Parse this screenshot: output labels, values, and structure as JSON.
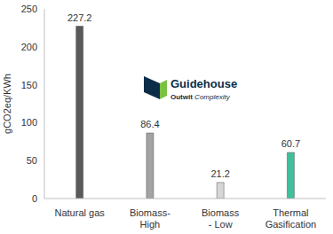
{
  "chart_data": {
    "type": "bar",
    "categories": [
      "Natural gas",
      "Biomass-\nHigh",
      "Biomass\n- Low",
      "Thermal\nGasification"
    ],
    "values": [
      227.2,
      86.4,
      21.2,
      60.7
    ],
    "colors": [
      "#5a5a5a",
      "#a3a3a3",
      "#d6d6d6",
      "#40bf9c"
    ],
    "y_label": "gCO2eq/KWh",
    "ylim": [
      0,
      250
    ],
    "yticks": [
      0,
      50,
      100,
      150,
      200,
      250
    ],
    "grid": false,
    "data_labels": true,
    "annotations": [
      "Guidehouse",
      "Outwit Complexity"
    ]
  }
}
